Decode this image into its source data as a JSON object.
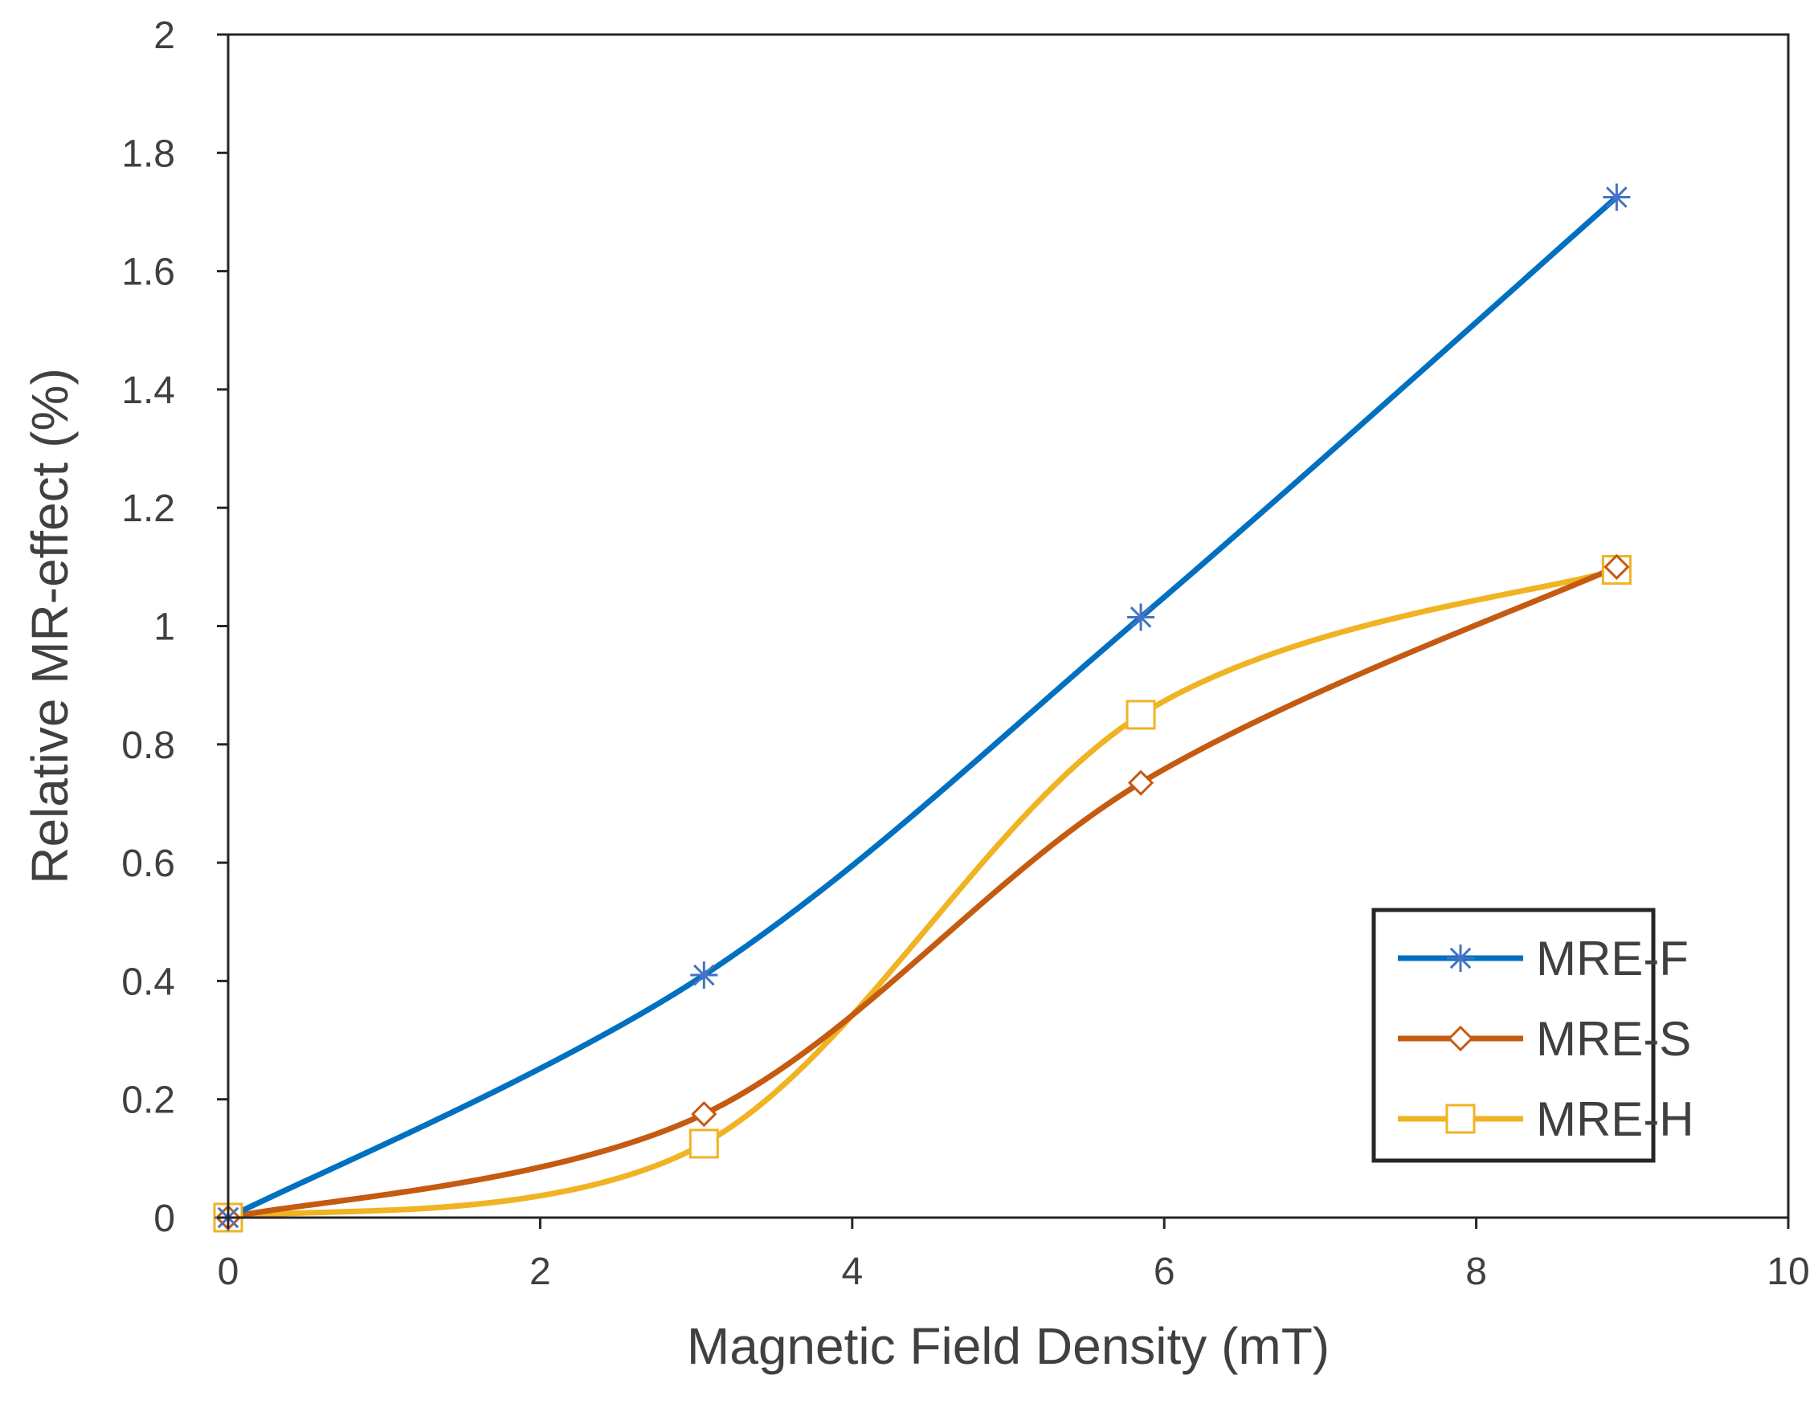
{
  "chart_data": {
    "type": "line",
    "title": "",
    "xlabel": "Magnetic Field Density (mT)",
    "ylabel": "Relative MR-effect (%)",
    "xlim": [
      0,
      10
    ],
    "ylim": [
      0,
      2
    ],
    "x_ticks": [
      "0",
      "2",
      "4",
      "6",
      "8",
      "10"
    ],
    "y_ticks": [
      "0",
      "0.2",
      "0.4",
      "0.6",
      "0.8",
      "1",
      "1.2",
      "1.4",
      "1.6",
      "1.8",
      "2"
    ],
    "grid": false,
    "legend_position": "bottom-right",
    "x": [
      0,
      3.05,
      5.85,
      8.9
    ],
    "series": [
      {
        "name": "MRE-F",
        "values": [
          0,
          0.41,
          1.015,
          1.725
        ],
        "color": "#0070C0",
        "marker": "asterisk",
        "marker_color": "#4472C4"
      },
      {
        "name": "MRE-S",
        "values": [
          0,
          0.175,
          0.735,
          1.1
        ],
        "color": "#C55A11",
        "marker": "diamond",
        "marker_color": "#C55A11"
      },
      {
        "name": "MRE-H",
        "values": [
          0,
          0.125,
          0.85,
          1.095
        ],
        "color": "#F0B323",
        "marker": "square",
        "marker_color": "#F0B323"
      }
    ]
  }
}
